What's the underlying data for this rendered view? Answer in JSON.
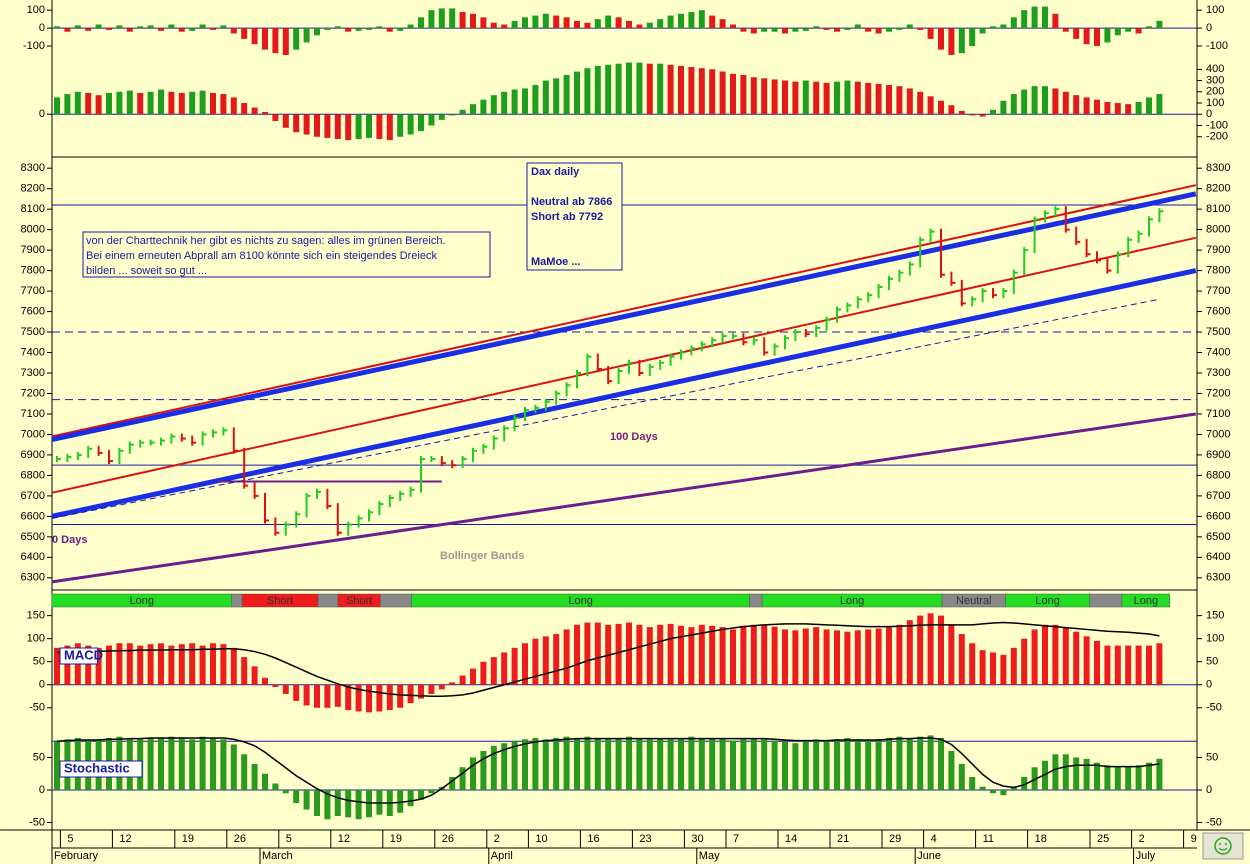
{
  "chart_data": [
    {
      "type": "ohlc",
      "categories": [
        null,
        "5",
        null,
        null,
        null,
        null,
        "12",
        null,
        null,
        null,
        null,
        null,
        "19",
        null,
        null,
        null,
        null,
        "26",
        null,
        null,
        null,
        null,
        "5",
        null,
        null,
        null,
        null,
        "12",
        null,
        null,
        null,
        null,
        "19",
        null,
        null,
        null,
        null,
        "26",
        null,
        null,
        null,
        null,
        "2",
        null,
        null,
        null,
        "10",
        null,
        null,
        null,
        null,
        "16",
        null,
        null,
        null,
        null,
        "23",
        null,
        null,
        null,
        null,
        "30",
        null,
        null,
        null,
        "7",
        null,
        null,
        null,
        null,
        "14",
        null,
        null,
        null,
        null,
        "21",
        null,
        null,
        null,
        null,
        "29",
        null,
        null,
        null,
        "4",
        null,
        null,
        null,
        null,
        "11",
        null,
        null,
        null,
        null,
        "18",
        null,
        null,
        null,
        null,
        null,
        "25",
        null,
        null,
        null,
        "2",
        null,
        null,
        null,
        null,
        "9"
      ],
      "months": [
        "February",
        null,
        null,
        null,
        null,
        null,
        null,
        null,
        null,
        null,
        null,
        null,
        null,
        null,
        null,
        null,
        null,
        null,
        null,
        null,
        "March",
        null,
        null,
        null,
        null,
        null,
        null,
        null,
        null,
        null,
        null,
        null,
        null,
        null,
        null,
        null,
        null,
        null,
        null,
        null,
        null,
        null,
        "April",
        null,
        null,
        null,
        null,
        null,
        null,
        null,
        null,
        null,
        null,
        null,
        null,
        null,
        null,
        null,
        null,
        null,
        null,
        null,
        "May",
        null,
        null,
        null,
        null,
        null,
        null,
        null,
        null,
        null,
        null,
        null,
        null,
        null,
        null,
        null,
        null,
        null,
        null,
        null,
        null,
        "June",
        null,
        null,
        null,
        null,
        null,
        null,
        null,
        null,
        null,
        null,
        null,
        null,
        null,
        null,
        null,
        null,
        null,
        null,
        null,
        null,
        "July",
        null,
        null,
        null,
        null,
        null
      ],
      "values": [
        6880,
        6890,
        6900,
        6930,
        6910,
        6870,
        6920,
        6950,
        6960,
        6960,
        6970,
        6990,
        6980,
        6960,
        7000,
        7010,
        7020,
        6920,
        6750,
        6700,
        6580,
        6520,
        6560,
        6610,
        6700,
        6720,
        6650,
        6520,
        6560,
        6590,
        6620,
        6660,
        6690,
        6710,
        6730,
        6880,
        6880,
        6860,
        6850,
        6880,
        6920,
        6940,
        6980,
        7030,
        7080,
        7120,
        7130,
        7160,
        7200,
        7240,
        7300,
        7380,
        7320,
        7260,
        7310,
        7350,
        7300,
        7330,
        7350,
        7380,
        7400,
        7420,
        7440,
        7460,
        7480,
        7480,
        7450,
        7460,
        7400,
        7430,
        7470,
        7500,
        7490,
        7520,
        7560,
        7610,
        7630,
        7660,
        7680,
        7720,
        7760,
        7790,
        7830,
        7950,
        7990,
        7780,
        7740,
        7640,
        7660,
        7700,
        7680,
        7700,
        7790,
        7900,
        8050,
        8080,
        8100,
        8000,
        7940,
        7880,
        7850,
        7800,
        7880,
        7950,
        7980,
        8050,
        8090,
        null,
        null,
        null
      ],
      "up_color": "#22cc22",
      "down_color": "#dd1111",
      "ylim": [
        6260,
        8340
      ],
      "yticks": [
        8300,
        8200,
        8100,
        8000,
        7900,
        7800,
        7700,
        7600,
        7500,
        7400,
        7300,
        7200,
        7100,
        7000,
        6900,
        6800,
        6700,
        6600,
        6500,
        6400,
        6300
      ],
      "hlines": [
        {
          "value": 8120,
          "dash": false
        },
        {
          "value": 7500,
          "dash": true
        },
        {
          "value": 7170,
          "dash": true
        },
        {
          "value": 6850,
          "dash": false
        },
        {
          "value": 6560,
          "dash": false
        }
      ],
      "trendlines": [
        {
          "x": [
            -0.5,
            109.5
          ],
          "y": [
            6990,
            8217
          ],
          "color": "#dd1111",
          "width": 2,
          "dash": false
        },
        {
          "x": [
            -0.5,
            109.5
          ],
          "y": [
            6975,
            8175
          ],
          "color": "#1a2ee6",
          "width": 5,
          "dash": false
        },
        {
          "x": [
            -0.5,
            109.5
          ],
          "y": [
            6715,
            7960
          ],
          "color": "#dd1111",
          "width": 2,
          "dash": false
        },
        {
          "x": [
            -0.5,
            109.5
          ],
          "y": [
            6600,
            7800
          ],
          "color": "#1a2ee6",
          "width": 5,
          "dash": false
        },
        {
          "x": [
            -0.5,
            109.5
          ],
          "y": [
            6280,
            7100
          ],
          "color": "#6b1e8c",
          "width": 3,
          "dash": false
        },
        {
          "x": [
            15.5,
            37
          ],
          "y": [
            6770,
            6770
          ],
          "color": "#6b1e8c",
          "width": 2,
          "dash": false
        },
        {
          "x": [
            -0.5,
            106
          ],
          "y": [
            6590,
            7660
          ],
          "color": "#1a1aa0",
          "width": 1,
          "dash": true
        }
      ],
      "signals": [
        {
          "label": "Long",
          "start": -0.5,
          "end": 16.8,
          "color": "#22dd22"
        },
        {
          "label": null,
          "start": 16.8,
          "end": 17.8,
          "color": "#888888"
        },
        {
          "label": "Short",
          "start": 17.8,
          "end": 25.1,
          "color": "#ee1c1c"
        },
        {
          "label": null,
          "start": 25.1,
          "end": 27.0,
          "color": "#888888"
        },
        {
          "label": "Short",
          "start": 27.0,
          "end": 31.1,
          "color": "#ee1c1c"
        },
        {
          "label": null,
          "start": 31.1,
          "end": 34.1,
          "color": "#888888"
        },
        {
          "label": "Long",
          "start": 34.1,
          "end": 66.6,
          "color": "#22dd22"
        },
        {
          "label": null,
          "start": 66.6,
          "end": 67.8,
          "color": "#888888"
        },
        {
          "label": "Long",
          "start": 67.8,
          "end": 85.1,
          "color": "#22dd22"
        },
        {
          "label": "Neutral",
          "start": 85.1,
          "end": 91.2,
          "color": "#888888"
        },
        {
          "label": "Long",
          "start": 91.2,
          "end": 99.3,
          "color": "#22dd22"
        },
        {
          "label": null,
          "start": 99.3,
          "end": 102.4,
          "color": "#888888"
        },
        {
          "label": "Long",
          "start": 102.4,
          "end": 107.0,
          "color": "#22dd22"
        }
      ],
      "annotations": [
        {
          "text": "100 Days",
          "color": "#7a1e7a"
        },
        {
          "text": "Bollinger Bands",
          "color": "#999999"
        },
        {
          "text": "0 Days",
          "color": "#6b1e8c"
        }
      ],
      "note": [
        "von der Charttechnik her gibt es nichts zu sagen: alles im grünen Bereich.",
        "Bei einem erneuten Abprall am 8100 könnte sich ein steigendes Dreieck",
        "bilden ... soweit so gut ..."
      ],
      "info": [
        "Dax daily",
        "Neutral ab 7866",
        "Short ab 7792",
        "MaMoe ..."
      ]
    },
    {
      "type": "bar",
      "values": [
        10,
        -20,
        15,
        -15,
        20,
        -10,
        15,
        -20,
        10,
        15,
        -15,
        20,
        -20,
        -15,
        20,
        -10,
        15,
        -30,
        -60,
        -90,
        -120,
        -140,
        -150,
        -120,
        -80,
        -40,
        -10,
        10,
        -20,
        -15,
        -10,
        10,
        -20,
        -15,
        20,
        60,
        100,
        110,
        110,
        90,
        80,
        60,
        30,
        20,
        40,
        60,
        70,
        80,
        70,
        60,
        40,
        30,
        50,
        70,
        60,
        40,
        20,
        30,
        50,
        70,
        80,
        90,
        100,
        70,
        50,
        20,
        -20,
        -30,
        -20,
        -20,
        -30,
        -20,
        -15,
        10,
        -10,
        -20,
        -10,
        20,
        -20,
        -30,
        -20,
        -10,
        20,
        -10,
        -60,
        -120,
        -150,
        -140,
        -100,
        -30,
        10,
        20,
        60,
        100,
        120,
        120,
        80,
        -20,
        -60,
        -90,
        -100,
        -80,
        -40,
        -20,
        -30,
        10,
        40,
        null,
        null,
        null
      ],
      "up_color": "#1e9e1e",
      "down_color": "#e21a1a",
      "ylim": [
        -150,
        140
      ],
      "yticks": [
        100,
        0,
        -100
      ],
      "hlines": [
        {
          "value": 0,
          "dash": false
        }
      ]
    },
    {
      "type": "bar",
      "values": [
        150,
        180,
        200,
        190,
        170,
        190,
        200,
        210,
        190,
        200,
        220,
        200,
        190,
        200,
        210,
        190,
        180,
        150,
        100,
        60,
        20,
        -60,
        -120,
        -160,
        -180,
        -200,
        -210,
        -220,
        -230,
        -220,
        -210,
        -220,
        -230,
        -200,
        -180,
        -150,
        -100,
        -50,
        -10,
        40,
        90,
        130,
        170,
        200,
        220,
        230,
        260,
        300,
        320,
        350,
        380,
        410,
        430,
        440,
        450,
        460,
        460,
        450,
        450,
        440,
        430,
        420,
        410,
        400,
        380,
        360,
        350,
        330,
        320,
        310,
        300,
        290,
        300,
        290,
        280,
        290,
        300,
        290,
        280,
        270,
        260,
        250,
        230,
        200,
        160,
        120,
        80,
        30,
        -10,
        -20,
        40,
        120,
        180,
        220,
        250,
        250,
        230,
        200,
        170,
        150,
        130,
        110,
        100,
        90,
        110,
        150,
        180,
        null,
        null,
        null
      ],
      "up_color": "#1e9e1e",
      "down_color": "#e21a1a",
      "ylim": [
        -300,
        465
      ],
      "yticks": [
        400,
        300,
        200,
        100,
        0,
        -100,
        -200
      ],
      "yticks_left": [
        0
      ],
      "hlines": [
        {
          "value": 0,
          "dash": false
        }
      ]
    },
    {
      "type": "bar",
      "label": "MACD",
      "values": [
        80,
        85,
        90,
        85,
        80,
        85,
        90,
        90,
        85,
        88,
        90,
        85,
        88,
        90,
        85,
        90,
        88,
        80,
        60,
        40,
        15,
        -5,
        -20,
        -35,
        -45,
        -50,
        -50,
        -48,
        -55,
        -58,
        -60,
        -58,
        -55,
        -50,
        -40,
        -30,
        -20,
        -10,
        5,
        20,
        35,
        50,
        60,
        70,
        80,
        90,
        100,
        105,
        110,
        120,
        130,
        135,
        135,
        130,
        132,
        135,
        130,
        125,
        130,
        132,
        128,
        125,
        130,
        128,
        125,
        120,
        128,
        130,
        130,
        126,
        120,
        118,
        122,
        125,
        120,
        118,
        115,
        118,
        120,
        122,
        125,
        130,
        140,
        150,
        155,
        150,
        130,
        110,
        90,
        75,
        70,
        65,
        80,
        100,
        120,
        130,
        130,
        125,
        115,
        105,
        95,
        85,
        85,
        85,
        85,
        85,
        90,
        null,
        null,
        null
      ],
      "line": [
        70,
        70,
        72,
        72,
        73,
        73,
        74,
        74,
        75,
        75,
        75,
        76,
        76,
        76,
        77,
        77,
        78,
        78,
        76,
        72,
        66,
        58,
        48,
        38,
        28,
        18,
        10,
        2,
        -5,
        -10,
        -14,
        -17,
        -20,
        -22,
        -23,
        -24,
        -25,
        -25,
        -24,
        -22,
        -18,
        -12,
        -6,
        0,
        6,
        12,
        18,
        24,
        30,
        36,
        44,
        52,
        58,
        64,
        70,
        76,
        82,
        88,
        94,
        100,
        104,
        108,
        112,
        116,
        120,
        123,
        126,
        128,
        130,
        131,
        132,
        132,
        132,
        131,
        130,
        129,
        128,
        127,
        126,
        126,
        126,
        127,
        128,
        129,
        130,
        130,
        130,
        130,
        130,
        132,
        134,
        135,
        134,
        132,
        130,
        128,
        126,
        124,
        122,
        120,
        118,
        116,
        115,
        114,
        112,
        110,
        106,
        null,
        null,
        null
      ],
      "color": "#ee1c1c",
      "line_color": "#000000",
      "ylim": [
        -70,
        160
      ],
      "yticks": [
        150,
        100,
        50,
        0,
        -50
      ],
      "hlines": [
        {
          "value": 0,
          "dash": false
        }
      ]
    },
    {
      "type": "bar",
      "label": "Stochastic",
      "values": [
        75,
        78,
        80,
        76,
        78,
        80,
        82,
        80,
        78,
        80,
        80,
        82,
        80,
        78,
        82,
        80,
        78,
        70,
        55,
        40,
        25,
        10,
        -5,
        -20,
        -30,
        -40,
        -45,
        -40,
        -42,
        -45,
        -42,
        -38,
        -40,
        -35,
        -25,
        -15,
        -5,
        5,
        20,
        35,
        50,
        60,
        68,
        72,
        75,
        78,
        80,
        78,
        80,
        82,
        80,
        82,
        80,
        78,
        80,
        82,
        80,
        78,
        80,
        78,
        80,
        82,
        80,
        80,
        78,
        76,
        78,
        80,
        78,
        76,
        74,
        72,
        75,
        78,
        76,
        78,
        80,
        78,
        76,
        78,
        80,
        82,
        80,
        82,
        84,
        80,
        60,
        40,
        20,
        5,
        -5,
        -8,
        5,
        20,
        35,
        45,
        55,
        55,
        50,
        48,
        42,
        38,
        36,
        36,
        38,
        42,
        48,
        null,
        null,
        null
      ],
      "line": [
        75,
        76,
        77,
        77,
        77,
        78,
        78,
        79,
        79,
        80,
        80,
        80,
        80,
        80,
        80,
        80,
        80,
        78,
        74,
        68,
        58,
        46,
        34,
        22,
        12,
        2,
        -6,
        -12,
        -16,
        -18,
        -20,
        -20,
        -20,
        -19,
        -17,
        -14,
        -8,
        2,
        14,
        26,
        38,
        48,
        56,
        62,
        67,
        71,
        74,
        76,
        77,
        78,
        79,
        79,
        79,
        79,
        79,
        79,
        79,
        79,
        79,
        79,
        79,
        79,
        79,
        79,
        79,
        79,
        79,
        79,
        79,
        78,
        77,
        76,
        76,
        76,
        76,
        77,
        77,
        77,
        77,
        77,
        78,
        79,
        79,
        80,
        80,
        78,
        70,
        56,
        40,
        24,
        12,
        6,
        4,
        8,
        16,
        24,
        32,
        36,
        38,
        38,
        38,
        36,
        36,
        36,
        36,
        38,
        40,
        null,
        null,
        null
      ],
      "color": "#2a9a1e",
      "line_color": "#000000",
      "ylim": [
        -60,
        100
      ],
      "yticks": [
        50,
        0,
        -50
      ],
      "hlines": [
        {
          "value": 75,
          "dash": false
        },
        {
          "value": 0,
          "dash": false
        }
      ]
    }
  ]
}
